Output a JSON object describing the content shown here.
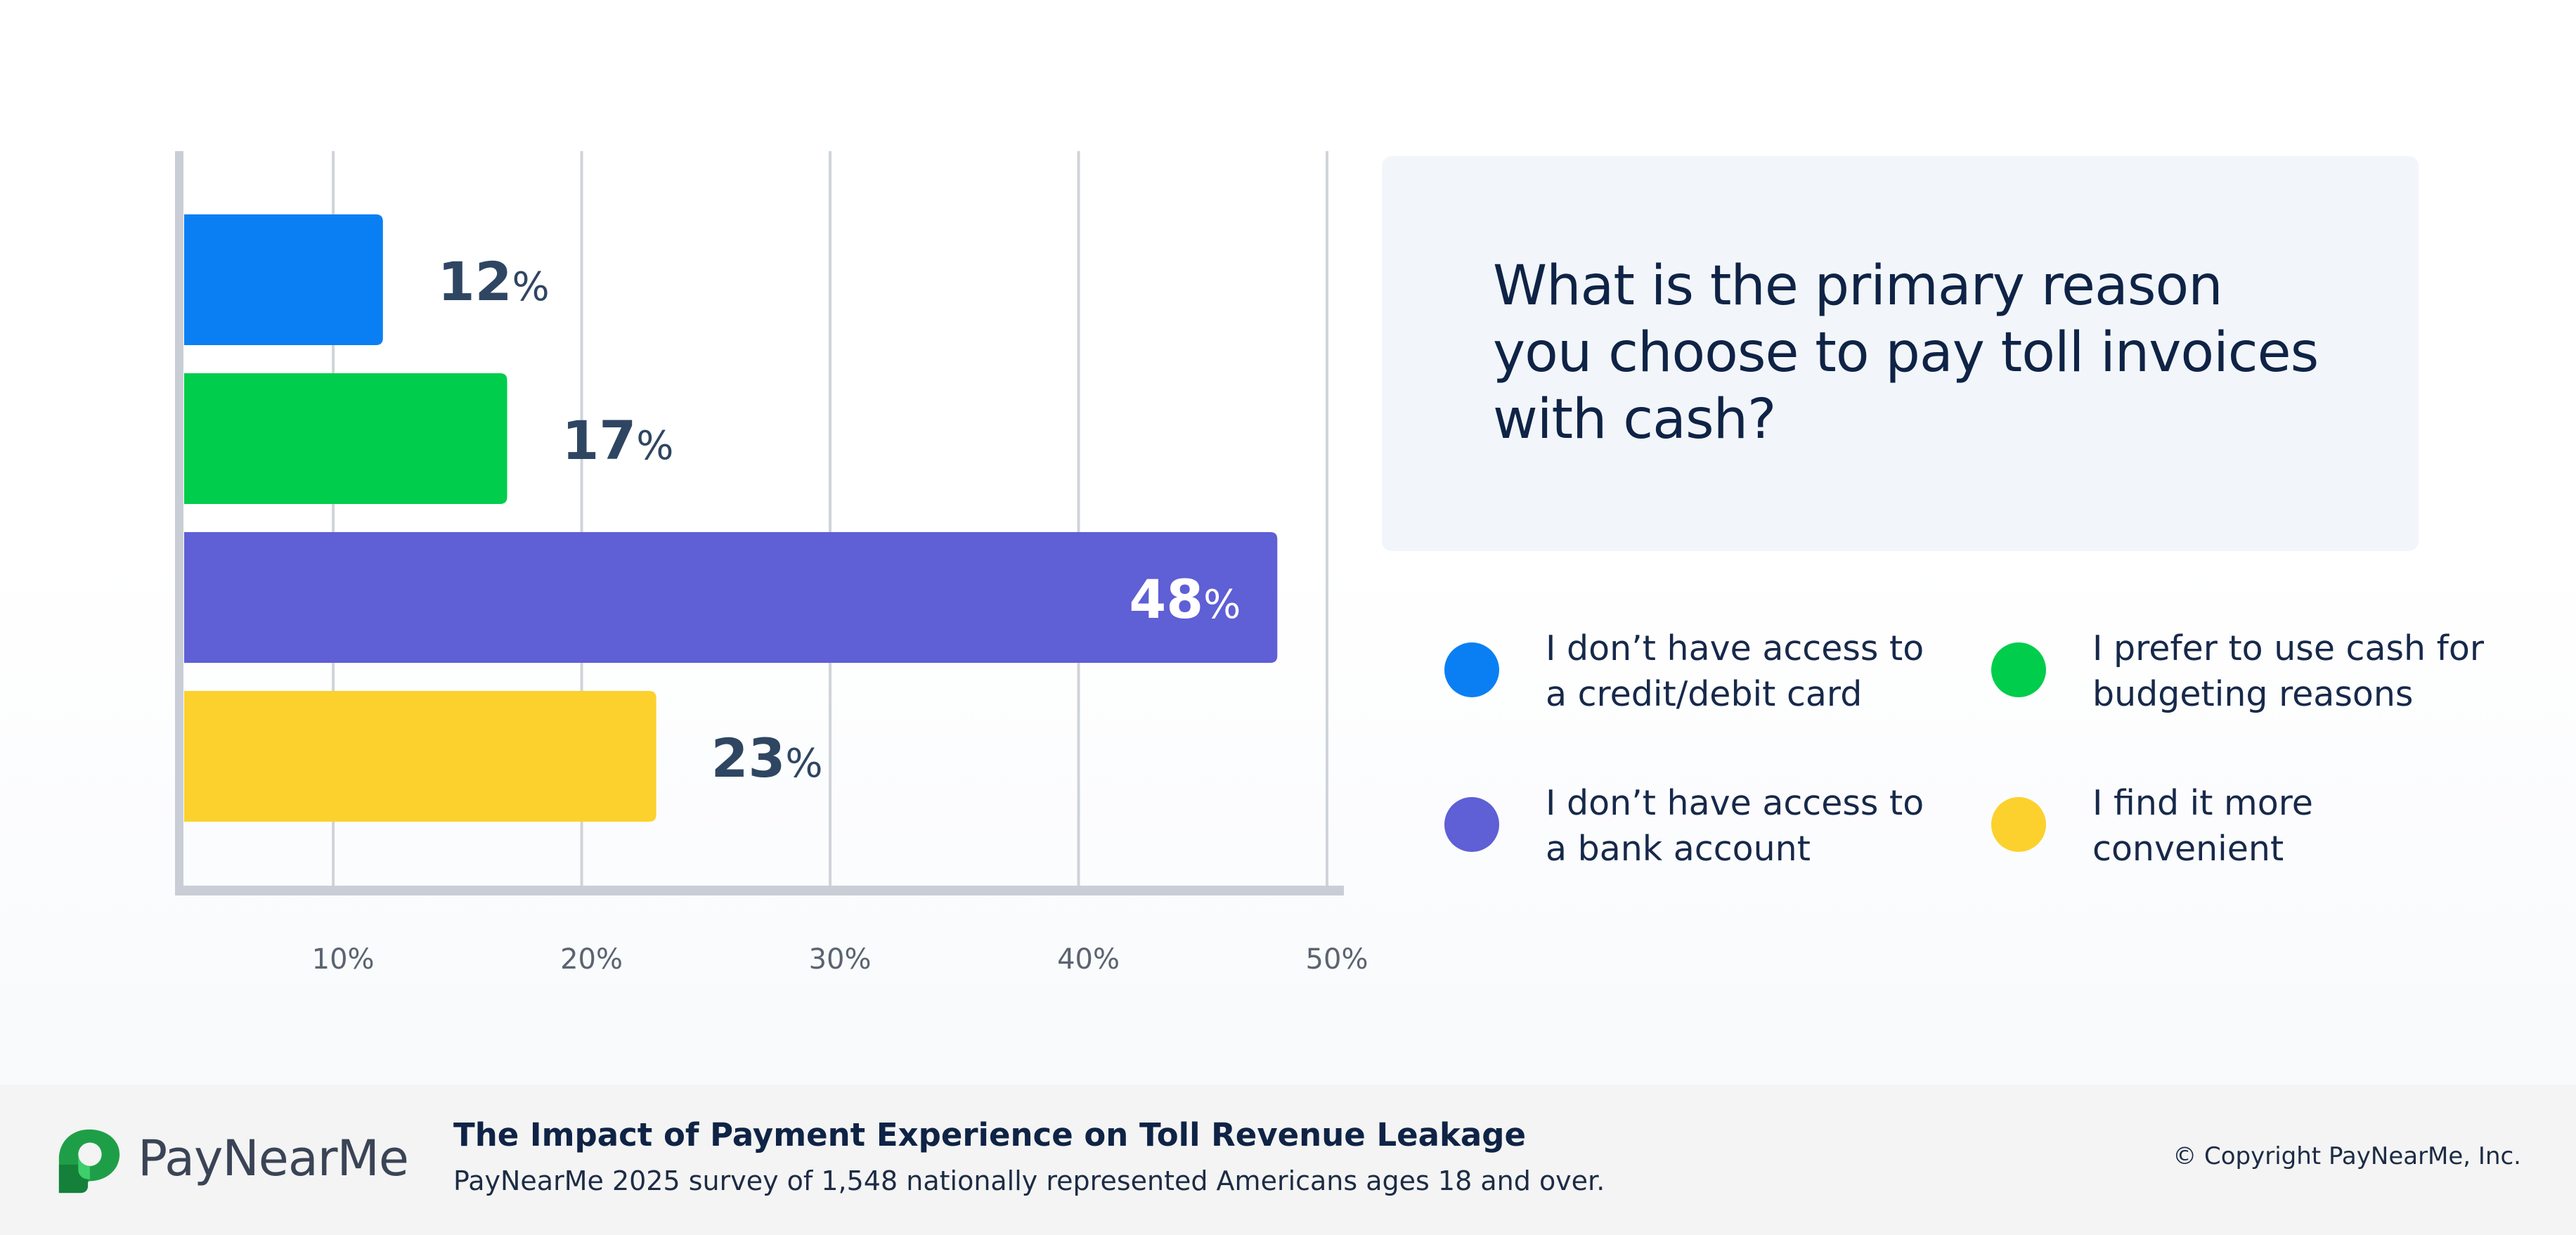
{
  "chart_data": {
    "type": "bar",
    "orientation": "horizontal",
    "categories": [
      "I don’t have access to a credit/debit card",
      "I prefer to use cash for budgeting reasons",
      "I don’t have access to a bank account",
      "I find it more convenient"
    ],
    "values": [
      12,
      17,
      48,
      23
    ],
    "value_suffix": "%",
    "xlim": [
      4,
      50
    ],
    "x_ticks": [
      10,
      20,
      30,
      40,
      50
    ],
    "x_tick_labels": [
      "10%",
      "20%",
      "30%",
      "40%",
      "50%"
    ],
    "grid": true,
    "colors": [
      "#0a7ff4",
      "#00cd4b",
      "#5f5fd6",
      "#fcd12d"
    ],
    "label_color": "#2f4662",
    "label_inside_color": "#ffffff"
  },
  "question": "What is the primary reason you choose to pay toll invoices with cash?",
  "legend": [
    {
      "label": "I don’t have access to a credit/debit card",
      "color": "#0a7ff4"
    },
    {
      "label": "I prefer to use cash for budgeting reasons",
      "color": "#00cd4b"
    },
    {
      "label": "I don’t have access to a bank account",
      "color": "#5f5fd6"
    },
    {
      "label": "I find it more convenient",
      "color": "#fcd12d"
    }
  ],
  "footer": {
    "brand": "PayNearMe",
    "title": "The Impact of Payment Experience on Toll Revenue Leakage",
    "subtitle": "PayNearMe 2025 survey of 1,548 nationally represented Americans ages 18 and over.",
    "copyright": "© Copyright PayNearMe, Inc."
  }
}
